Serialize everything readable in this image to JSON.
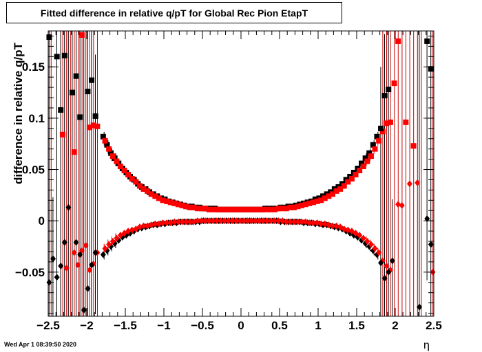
{
  "title": "Fitted difference in relative q/pT for Global Rec Pion EtapT",
  "timestamp": "Wed Apr  1 08:39:50 2020",
  "chart_data": {
    "type": "scatter",
    "title": "Fitted difference in relative q/pT for Global Rec Pion EtapT",
    "xlabel": "η",
    "ylabel": "difference in relative q/pT",
    "xlim": [
      -2.5,
      2.5
    ],
    "ylim": [
      -0.093,
      0.185
    ],
    "grid": false,
    "xticks": [
      "−2.5",
      "−2",
      "−1.5",
      "−1",
      "−0.5",
      "0",
      "0.5",
      "1",
      "1.5",
      "2",
      "2.5"
    ],
    "xtick_values": [
      -2.5,
      -2,
      -1.5,
      -1,
      -0.5,
      0,
      0.5,
      1,
      1.5,
      2,
      2.5
    ],
    "yticks": [
      "−0.05",
      "0",
      "0.05",
      "0.1",
      "0.15"
    ],
    "ytick_values": [
      -0.05,
      0,
      0.05,
      0.1,
      0.15
    ],
    "outer_points": {
      "eta": [
        -2.475,
        -2.425,
        -2.375,
        -2.325,
        -2.275,
        -2.225,
        -2.175,
        -2.125,
        -2.075,
        -2.025,
        -1.975,
        -1.925,
        -1.875,
        -1.825,
        1.825,
        1.875,
        1.925,
        1.975,
        2.025,
        2.075,
        2.125,
        2.175,
        2.225,
        2.275,
        2.325,
        2.375,
        2.425,
        2.475
      ],
      "black_width": [
        0.179,
        0.0,
        0.16,
        0.108,
        0.161,
        0.0,
        0.125,
        0.141,
        0.101,
        0.0,
        0.126,
        0.137,
        0.102,
        0.0,
        0.09,
        0.122,
        0.128,
        0.0,
        0.0,
        0.0,
        0.0,
        0.0,
        0.0,
        0.0,
        0.0,
        0.0,
        0.175,
        0.148
      ],
      "red_width": [
        0.0,
        0.0,
        0.0,
        0.084,
        0.0,
        0.0,
        0.067,
        0.0,
        0.181,
        0.0,
        0.091,
        0.093,
        0.092,
        0.0,
        0.087,
        0.095,
        0.096,
        0.134,
        0.175,
        0.0,
        0.096,
        0.0,
        0.073,
        0.0,
        0.0,
        0.0,
        0.0,
        0.0
      ],
      "black_mean": [
        -0.06,
        -0.037,
        -0.055,
        -0.044,
        -0.021,
        0.013,
        0.0,
        -0.021,
        -0.033,
        -0.087,
        -0.066,
        -0.043,
        -0.031,
        0.0,
        -0.041,
        -0.056,
        -0.05,
        -0.039,
        0.0,
        0.0,
        0.0,
        0.0,
        0.0,
        0.0,
        -0.084,
        0.0,
        0.002,
        -0.023
      ],
      "red_mean": [
        0.0,
        0.0,
        0.0,
        0.0,
        -0.046,
        0.0,
        -0.031,
        -0.043,
        -0.029,
        -0.024,
        -0.048,
        -0.042,
        -0.031,
        0.0,
        -0.039,
        -0.044,
        -0.048,
        0.0,
        0.016,
        0.015,
        0.0,
        0.036,
        0.0,
        0.037,
        0.0,
        0.0,
        0.0,
        -0.05
      ]
    },
    "series": [
      {
        "marker": "square",
        "color": "#000000",
        "eta": [
          -1.775,
          -1.725,
          -1.675,
          -1.625,
          -1.575,
          -1.525,
          -1.475,
          -1.425,
          -1.375,
          -1.325,
          -1.275,
          -1.225,
          -1.175,
          -1.125,
          -1.075,
          -1.025,
          -0.975,
          -0.925,
          -0.875,
          -0.825,
          -0.775,
          -0.725,
          -0.675,
          -0.625,
          -0.575,
          -0.525,
          -0.475,
          -0.425,
          -0.375,
          -0.325,
          -0.275,
          -0.225,
          -0.175,
          -0.125,
          -0.075,
          -0.025,
          0.025,
          0.075,
          0.125,
          0.175,
          0.225,
          0.275,
          0.325,
          0.375,
          0.425,
          0.475,
          0.525,
          0.575,
          0.625,
          0.675,
          0.725,
          0.775,
          0.825,
          0.875,
          0.925,
          0.975,
          1.025,
          1.075,
          1.125,
          1.175,
          1.225,
          1.275,
          1.325,
          1.375,
          1.425,
          1.475,
          1.525,
          1.575,
          1.625,
          1.675,
          1.725,
          1.775
        ],
        "values": [
          0.082,
          0.074,
          0.066,
          0.061,
          0.056,
          0.051,
          0.047,
          0.043,
          0.04,
          0.036,
          0.033,
          0.031,
          0.028,
          0.026,
          0.024,
          0.022,
          0.021,
          0.019,
          0.018,
          0.017,
          0.016,
          0.015,
          0.014,
          0.014,
          0.013,
          0.013,
          0.012,
          0.012,
          0.012,
          0.012,
          0.011,
          0.011,
          0.011,
          0.011,
          0.011,
          0.011,
          0.011,
          0.011,
          0.011,
          0.011,
          0.011,
          0.011,
          0.012,
          0.012,
          0.012,
          0.012,
          0.013,
          0.013,
          0.014,
          0.014,
          0.015,
          0.016,
          0.017,
          0.018,
          0.019,
          0.021,
          0.022,
          0.024,
          0.026,
          0.028,
          0.031,
          0.033,
          0.036,
          0.04,
          0.043,
          0.047,
          0.051,
          0.056,
          0.061,
          0.066,
          0.074,
          0.082
        ]
      },
      {
        "marker": "square",
        "color": "#ff0000",
        "eta": [
          -1.775,
          -1.725,
          -1.675,
          -1.625,
          -1.575,
          -1.525,
          -1.475,
          -1.425,
          -1.375,
          -1.325,
          -1.275,
          -1.225,
          -1.175,
          -1.125,
          -1.075,
          -1.025,
          -0.975,
          -0.925,
          -0.875,
          -0.825,
          -0.775,
          -0.725,
          -0.675,
          -0.625,
          -0.575,
          -0.525,
          -0.475,
          -0.425,
          -0.375,
          -0.325,
          -0.275,
          -0.225,
          -0.175,
          -0.125,
          -0.075,
          -0.025,
          0.025,
          0.075,
          0.125,
          0.175,
          0.225,
          0.275,
          0.325,
          0.375,
          0.425,
          0.475,
          0.525,
          0.575,
          0.625,
          0.675,
          0.725,
          0.775,
          0.825,
          0.875,
          0.925,
          0.975,
          1.025,
          1.075,
          1.125,
          1.175,
          1.225,
          1.275,
          1.325,
          1.375,
          1.425,
          1.475,
          1.525,
          1.575,
          1.625,
          1.675,
          1.725,
          1.775
        ],
        "values": [
          0.078,
          0.07,
          0.063,
          0.058,
          0.053,
          0.049,
          0.045,
          0.041,
          0.038,
          0.034,
          0.031,
          0.029,
          0.026,
          0.024,
          0.022,
          0.02,
          0.019,
          0.018,
          0.017,
          0.016,
          0.015,
          0.014,
          0.013,
          0.013,
          0.012,
          0.012,
          0.012,
          0.011,
          0.011,
          0.011,
          0.011,
          0.011,
          0.011,
          0.011,
          0.011,
          0.011,
          0.011,
          0.011,
          0.011,
          0.011,
          0.011,
          0.011,
          0.011,
          0.011,
          0.011,
          0.012,
          0.012,
          0.012,
          0.013,
          0.013,
          0.014,
          0.015,
          0.016,
          0.017,
          0.018,
          0.019,
          0.02,
          0.022,
          0.024,
          0.026,
          0.029,
          0.031,
          0.034,
          0.038,
          0.041,
          0.045,
          0.049,
          0.053,
          0.058,
          0.063,
          0.07,
          0.078
        ]
      },
      {
        "marker": "diamond",
        "color": "#000000",
        "eta": [
          -1.775,
          -1.725,
          -1.675,
          -1.625,
          -1.575,
          -1.525,
          -1.475,
          -1.425,
          -1.375,
          -1.325,
          -1.275,
          -1.225,
          -1.175,
          -1.125,
          -1.075,
          -1.025,
          -0.975,
          -0.925,
          -0.875,
          -0.825,
          -0.775,
          -0.725,
          -0.675,
          -0.625,
          -0.575,
          -0.525,
          -0.475,
          -0.425,
          -0.375,
          -0.325,
          -0.275,
          -0.225,
          -0.175,
          -0.125,
          -0.075,
          -0.025,
          0.025,
          0.075,
          0.125,
          0.175,
          0.225,
          0.275,
          0.325,
          0.375,
          0.425,
          0.475,
          0.525,
          0.575,
          0.625,
          0.675,
          0.725,
          0.775,
          0.825,
          0.875,
          0.925,
          0.975,
          1.025,
          1.075,
          1.125,
          1.175,
          1.225,
          1.275,
          1.325,
          1.375,
          1.425,
          1.475,
          1.525,
          1.575,
          1.625,
          1.675,
          1.725,
          1.775
        ],
        "values": [
          -0.033,
          -0.029,
          -0.025,
          -0.022,
          -0.019,
          -0.016,
          -0.014,
          -0.012,
          -0.01,
          -0.008,
          -0.007,
          -0.006,
          -0.005,
          -0.004,
          -0.004,
          -0.003,
          -0.003,
          -0.002,
          -0.002,
          -0.002,
          -0.001,
          -0.001,
          -0.001,
          -0.001,
          -0.001,
          -0.001,
          0.0,
          0.0,
          0.0,
          0.0,
          0.0,
          0.0,
          0.0,
          0.0,
          0.0,
          0.0,
          0.0,
          0.0,
          0.0,
          0.0,
          0.0,
          0.0,
          0.0,
          0.0,
          0.0,
          0.0,
          -0.001,
          -0.001,
          -0.001,
          -0.001,
          -0.001,
          -0.001,
          -0.002,
          -0.002,
          -0.002,
          -0.003,
          -0.003,
          -0.004,
          -0.004,
          -0.005,
          -0.006,
          -0.007,
          -0.008,
          -0.01,
          -0.012,
          -0.014,
          -0.016,
          -0.019,
          -0.022,
          -0.025,
          -0.029,
          -0.033
        ]
      },
      {
        "marker": "diamond",
        "color": "#ff0000",
        "eta": [
          -1.775,
          -1.725,
          -1.675,
          -1.625,
          -1.575,
          -1.525,
          -1.475,
          -1.425,
          -1.375,
          -1.325,
          -1.275,
          -1.225,
          -1.175,
          -1.125,
          -1.075,
          -1.025,
          -0.975,
          -0.925,
          -0.875,
          -0.825,
          -0.775,
          -0.725,
          -0.675,
          -0.625,
          -0.575,
          -0.525,
          -0.475,
          -0.425,
          -0.375,
          -0.325,
          -0.275,
          -0.225,
          -0.175,
          -0.125,
          -0.075,
          -0.025,
          0.025,
          0.075,
          0.125,
          0.175,
          0.225,
          0.275,
          0.325,
          0.375,
          0.425,
          0.475,
          0.525,
          0.575,
          0.625,
          0.675,
          0.725,
          0.775,
          0.825,
          0.875,
          0.925,
          0.975,
          1.025,
          1.075,
          1.125,
          1.175,
          1.225,
          1.275,
          1.325,
          1.375,
          1.425,
          1.475,
          1.525,
          1.575,
          1.625,
          1.675,
          1.725,
          1.775
        ],
        "values": [
          -0.027,
          -0.023,
          -0.02,
          -0.017,
          -0.014,
          -0.012,
          -0.01,
          -0.009,
          -0.008,
          -0.006,
          -0.005,
          -0.005,
          -0.004,
          -0.003,
          -0.003,
          -0.002,
          -0.002,
          -0.002,
          -0.001,
          -0.001,
          -0.001,
          -0.001,
          -0.001,
          -0.001,
          0.0,
          0.0,
          0.0,
          0.0,
          0.0,
          0.0,
          0.0,
          0.0,
          0.0,
          0.0,
          0.0,
          0.0,
          0.0,
          0.0,
          0.0,
          0.0,
          0.0,
          0.0,
          0.0,
          0.0,
          0.0,
          0.0,
          0.0,
          -0.001,
          -0.001,
          -0.001,
          -0.001,
          -0.001,
          -0.001,
          -0.002,
          -0.002,
          -0.002,
          -0.003,
          -0.003,
          -0.004,
          -0.005,
          -0.005,
          -0.006,
          -0.008,
          -0.009,
          -0.01,
          -0.012,
          -0.014,
          -0.017,
          -0.02,
          -0.023,
          -0.027,
          -0.031
        ]
      }
    ]
  }
}
